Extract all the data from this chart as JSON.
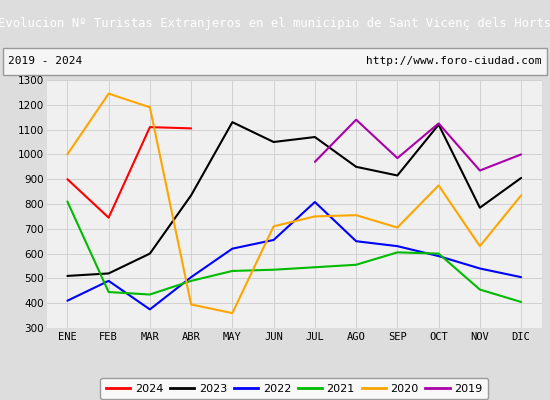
{
  "title": "Evolucion Nº Turistas Extranjeros en el municipio de Sant Vicenç dels Horts",
  "subtitle_left": "2019 - 2024",
  "subtitle_right": "http://www.foro-ciudad.com",
  "title_bg_color": "#4472c4",
  "title_text_color": "#ffffff",
  "months": [
    "ENE",
    "FEB",
    "MAR",
    "ABR",
    "MAY",
    "JUN",
    "JUL",
    "AGO",
    "SEP",
    "OCT",
    "NOV",
    "DIC"
  ],
  "ylim": [
    300,
    1300
  ],
  "yticks": [
    300,
    400,
    500,
    600,
    700,
    800,
    900,
    1000,
    1100,
    1200,
    1300
  ],
  "series": {
    "2024": {
      "color": "#ff0000",
      "data": [
        900,
        745,
        1110,
        1105,
        null,
        null,
        null,
        null,
        null,
        null,
        null,
        null
      ]
    },
    "2023": {
      "color": "#000000",
      "data": [
        510,
        520,
        600,
        835,
        1130,
        1050,
        1070,
        950,
        915,
        1120,
        785,
        905
      ]
    },
    "2022": {
      "color": "#0000ff",
      "data": [
        410,
        490,
        375,
        505,
        620,
        655,
        808,
        650,
        630,
        590,
        540,
        505
      ]
    },
    "2021": {
      "color": "#00bb00",
      "data": [
        810,
        445,
        435,
        490,
        530,
        535,
        545,
        555,
        605,
        600,
        455,
        405
      ]
    },
    "2020": {
      "color": "#ffa500",
      "data": [
        1000,
        1245,
        1190,
        395,
        360,
        710,
        750,
        755,
        705,
        875,
        630,
        835
      ]
    },
    "2019": {
      "color": "#aa00aa",
      "data": [
        null,
        null,
        null,
        null,
        null,
        null,
        970,
        1140,
        985,
        1125,
        935,
        1000
      ]
    }
  },
  "legend_order": [
    "2024",
    "2023",
    "2022",
    "2021",
    "2020",
    "2019"
  ],
  "grid_color": "#cccccc",
  "plot_bg_color": "#f0f0f0",
  "fig_bg_color": "#dddddd",
  "subtitle_bg_color": "#e8e8e8",
  "subtitle_border_color": "#999999"
}
